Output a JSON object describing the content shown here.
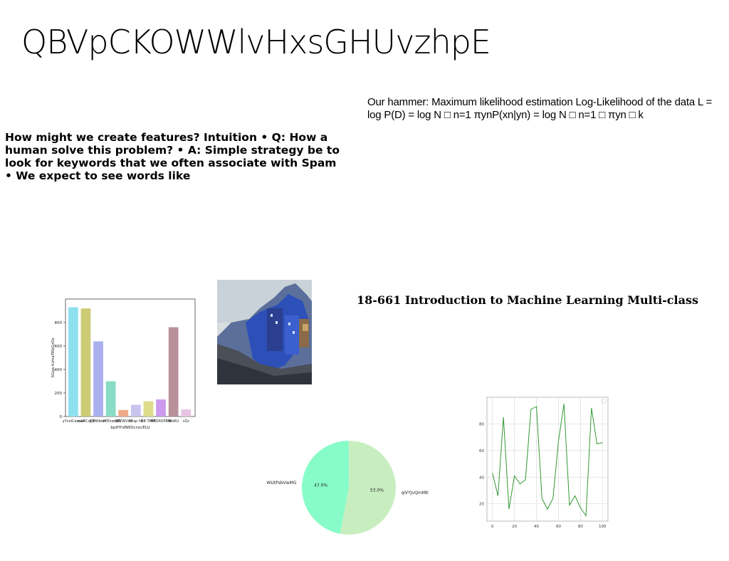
{
  "title": "QBVpCKOWWlvHxsGHUvzhpE",
  "text_blocks": {
    "hammer": "Our hammer: Maximum likelihood estimation Log-Likelihood of the data L = log P(D) = log N □ n=1 πynP(xn|yn) = log N □ n=1 □ πyn □ k",
    "features": "How might we create features? Intuition • Q: How a human solve this problem? • A: Simple strategy be to look for keywords that we often associate with Spam • We expect to see words like",
    "course": "18-661 Introduction to Machine Learning Multi-class"
  },
  "image": {
    "description_icon": "coastal-village-photo"
  },
  "chart_data": [
    {
      "type": "bar",
      "title": "",
      "xlabel": "bplHYsBWDcnocELU",
      "ylabel": "SGqa tUmaTKbGzOs",
      "categories": [
        "yYcolCeswU",
        "mwKCqDf",
        "QBWb aY",
        "nWDhwdAT",
        "QBVWVvd",
        "RKsp hK",
        "BB TARF",
        "MKOXOPBW",
        "WoRU",
        "vZx"
      ],
      "values": [
        930,
        920,
        640,
        300,
        55,
        100,
        130,
        145,
        760,
        60
      ],
      "colors": [
        "#8ee0ee",
        "#cccc77",
        "#aab0ee",
        "#88ddc4",
        "#eeaa88",
        "#c8c4ee",
        "#dcdc8c",
        "#cc99ee",
        "#b8909c",
        "#e8c4e4"
      ],
      "ylim": [
        0,
        1000
      ],
      "yticks": [
        0,
        200,
        400,
        600,
        800
      ],
      "grid": false
    },
    {
      "type": "pie",
      "labels": [
        "WUtPsbVwMG",
        "qiVYJvQmMK"
      ],
      "values": [
        47.0,
        53.0
      ],
      "pct_labels": [
        "47.0%",
        "53.0%"
      ],
      "colors": [
        "#88fcc8",
        "#c8eec0"
      ]
    },
    {
      "type": "line",
      "x": [
        0,
        5,
        10,
        15,
        20,
        25,
        30,
        35,
        40,
        45,
        50,
        55,
        60,
        65,
        70,
        75,
        80,
        85,
        90,
        95,
        100
      ],
      "y": [
        43,
        26,
        85,
        16,
        41,
        35,
        38,
        91,
        93,
        24,
        16,
        24,
        67,
        95,
        19,
        26,
        17,
        11,
        92,
        65,
        66
      ],
      "xticks": [
        0,
        20,
        40,
        60,
        80,
        100
      ],
      "yticks": [
        20,
        40,
        60,
        80
      ],
      "xlim": [
        -5,
        105
      ],
      "ylim": [
        7,
        100
      ],
      "grid": true,
      "color": "#339933"
    }
  ]
}
